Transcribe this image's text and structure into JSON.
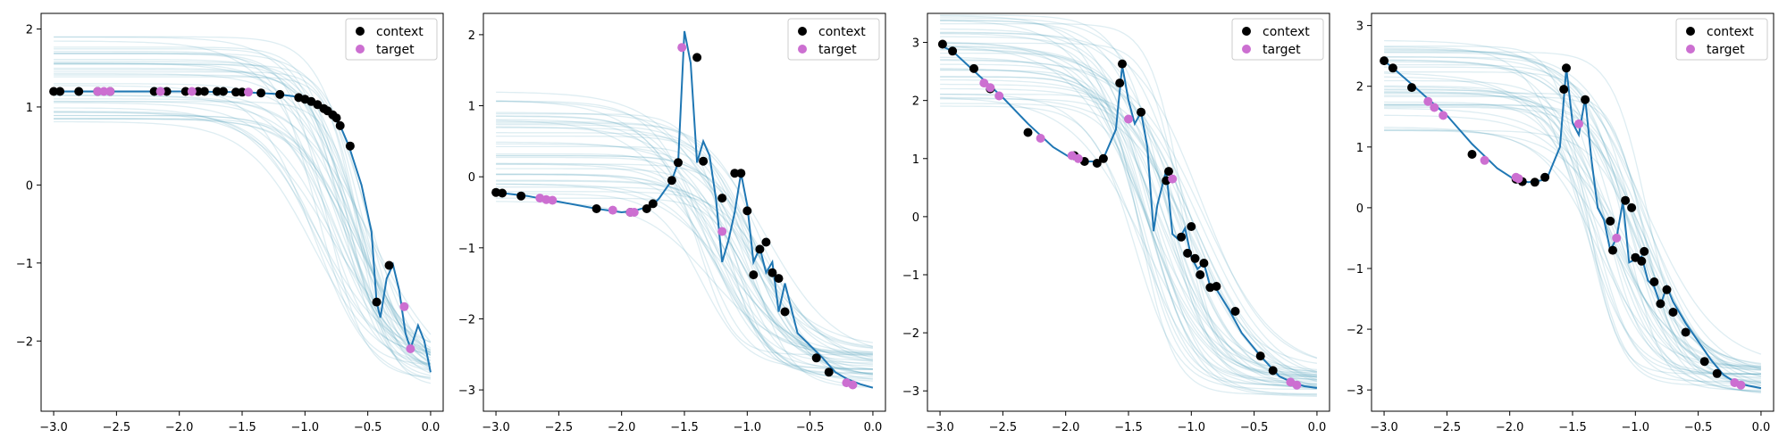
{
  "figure": {
    "colors": {
      "truth": "#1f77b4",
      "samples": "#4a9bb5",
      "band": "#9ed8df",
      "context": "#000000",
      "target": "#cc6fd1"
    },
    "legend": {
      "context_label": "context",
      "target_label": "target",
      "placement": "top-right"
    }
  },
  "chart_data": [
    {
      "type": "line",
      "xlim": [
        -3.1,
        0.1
      ],
      "ylim": [
        -2.9,
        2.2
      ],
      "xticks": [
        -3.0,
        -2.5,
        -2.0,
        -1.5,
        -1.0,
        -0.5,
        0.0
      ],
      "xtick_labels": [
        "−3.0",
        "−2.5",
        "−2.0",
        "−1.5",
        "−1.0",
        "−0.5",
        "0.0"
      ],
      "yticks": [
        -2,
        -1,
        0,
        1,
        2
      ],
      "ytick_labels": [
        "−2",
        "−1",
        "0",
        "1",
        "2"
      ],
      "truth_curve": {
        "x": [
          -3.0,
          -2.5,
          -2.0,
          -1.5,
          -1.25,
          -1.1,
          -1.0,
          -0.9,
          -0.8,
          -0.72,
          -0.65,
          -0.55,
          -0.47,
          -0.43,
          -0.4,
          -0.35,
          -0.3,
          -0.25,
          -0.2,
          -0.16,
          -0.1,
          -0.05,
          0.0
        ],
        "y": [
          1.2,
          1.2,
          1.2,
          1.19,
          1.17,
          1.14,
          1.1,
          1.03,
          0.92,
          0.76,
          0.5,
          0.0,
          -0.6,
          -1.5,
          -1.7,
          -1.2,
          -1.02,
          -1.35,
          -1.9,
          -2.1,
          -1.8,
          -2.0,
          -2.4
        ]
      },
      "context": {
        "x": [
          -3.0,
          -2.95,
          -2.8,
          -2.65,
          -2.55,
          -2.2,
          -2.1,
          -1.95,
          -1.85,
          -1.8,
          -1.7,
          -1.65,
          -1.55,
          -1.5,
          -1.35,
          -1.2,
          -1.05,
          -1.0,
          -0.95,
          -0.9,
          -0.85,
          -0.82,
          -0.78,
          -0.75,
          -0.72,
          -0.64,
          -0.43,
          -0.33
        ],
        "y": [
          1.2,
          1.2,
          1.2,
          1.2,
          1.2,
          1.2,
          1.2,
          1.2,
          1.2,
          1.2,
          1.2,
          1.2,
          1.19,
          1.19,
          1.18,
          1.16,
          1.12,
          1.1,
          1.07,
          1.03,
          0.98,
          0.95,
          0.9,
          0.86,
          0.76,
          0.5,
          -1.5,
          -1.03
        ]
      },
      "target": {
        "x": [
          -2.65,
          -2.6,
          -2.55,
          -2.15,
          -1.9,
          -1.45,
          -0.21,
          -0.16
        ],
        "y": [
          1.2,
          1.2,
          1.2,
          1.2,
          1.2,
          1.19,
          -1.56,
          -2.1
        ]
      },
      "samples": {
        "n": 40,
        "start_range": [
          0.78,
          1.9
        ],
        "end_range": [
          -2.6,
          -2.2
        ],
        "knee_range": [
          -0.95,
          -0.45
        ]
      }
    },
    {
      "type": "line",
      "xlim": [
        -3.1,
        0.1
      ],
      "ylim": [
        -3.3,
        2.3
      ],
      "xticks": [
        -3.0,
        -2.5,
        -2.0,
        -1.5,
        -1.0,
        -0.5,
        0.0
      ],
      "xtick_labels": [
        "−3.0",
        "−2.5",
        "−2.0",
        "−1.5",
        "−1.0",
        "−0.5",
        "0.0"
      ],
      "yticks": [
        -3,
        -2,
        -1,
        0,
        1,
        2
      ],
      "ytick_labels": [
        "−3",
        "−2",
        "−1",
        "0",
        "1",
        "2"
      ],
      "truth_curve": {
        "x": [
          -3.0,
          -2.9,
          -2.75,
          -2.6,
          -2.5,
          -2.2,
          -2.0,
          -1.9,
          -1.75,
          -1.7,
          -1.6,
          -1.55,
          -1.5,
          -1.45,
          -1.4,
          -1.35,
          -1.3,
          -1.25,
          -1.2,
          -1.15,
          -1.1,
          -1.05,
          -1.0,
          -0.95,
          -0.9,
          -0.85,
          -0.8,
          -0.75,
          -0.7,
          -0.6,
          -0.4,
          -0.3,
          -0.2,
          -0.1,
          0.0
        ],
        "y": [
          -0.22,
          -0.24,
          -0.27,
          -0.32,
          -0.35,
          -0.45,
          -0.5,
          -0.48,
          -0.4,
          -0.3,
          -0.05,
          0.2,
          2.05,
          1.6,
          0.2,
          0.5,
          0.3,
          -0.3,
          -1.2,
          -0.9,
          -0.5,
          0.05,
          -0.4,
          -1.2,
          -1.0,
          -1.35,
          -1.2,
          -1.9,
          -1.5,
          -2.2,
          -2.55,
          -2.75,
          -2.85,
          -2.92,
          -2.97
        ]
      },
      "context": {
        "x": [
          -3.0,
          -2.95,
          -2.8,
          -2.2,
          -1.93,
          -1.8,
          -1.75,
          -1.6,
          -1.55,
          -1.4,
          -1.35,
          -1.2,
          -1.1,
          -1.05,
          -1.0,
          -0.95,
          -0.9,
          -0.85,
          -0.8,
          -0.75,
          -0.7,
          -0.45,
          -0.35
        ],
        "y": [
          -0.22,
          -0.23,
          -0.27,
          -0.45,
          -0.5,
          -0.45,
          -0.38,
          -0.05,
          0.2,
          1.68,
          0.22,
          -0.3,
          0.05,
          0.05,
          -0.48,
          -1.38,
          -1.02,
          -0.92,
          -1.35,
          -1.43,
          -1.9,
          -2.55,
          -2.75
        ]
      },
      "target": {
        "x": [
          -2.65,
          -2.6,
          -2.55,
          -2.07,
          -1.93,
          -1.9,
          -1.52,
          -1.2,
          -0.21,
          -0.16
        ],
        "y": [
          -0.3,
          -0.32,
          -0.33,
          -0.47,
          -0.5,
          -0.5,
          1.82,
          -0.77,
          -2.9,
          -2.93
        ]
      },
      "samples": {
        "n": 40,
        "start_range": [
          -0.4,
          1.2
        ],
        "end_range": [
          -3.0,
          -2.4
        ],
        "knee_range": [
          -1.4,
          -0.8
        ]
      }
    },
    {
      "type": "line",
      "xlim": [
        -3.1,
        0.1
      ],
      "ylim": [
        -3.35,
        3.5
      ],
      "xticks": [
        -3.0,
        -2.5,
        -2.0,
        -1.5,
        -1.0,
        -0.5,
        0.0
      ],
      "xtick_labels": [
        "−3.0",
        "−2.5",
        "−2.0",
        "−1.5",
        "−1.0",
        "−0.5",
        "0.0"
      ],
      "yticks": [
        -3,
        -2,
        -1,
        0,
        1,
        2,
        3
      ],
      "ytick_labels": [
        "−3",
        "−2",
        "−1",
        "0",
        "1",
        "2",
        "3"
      ],
      "truth_curve": {
        "x": [
          -3.0,
          -2.9,
          -2.75,
          -2.6,
          -2.5,
          -2.3,
          -2.1,
          -1.95,
          -1.85,
          -1.75,
          -1.7,
          -1.6,
          -1.55,
          -1.5,
          -1.45,
          -1.4,
          -1.35,
          -1.3,
          -1.27,
          -1.2,
          -1.15,
          -1.1,
          -1.05,
          -1.0,
          -0.95,
          -0.9,
          -0.85,
          -0.8,
          -0.7,
          -0.6,
          -0.45,
          -0.3,
          -0.2,
          -0.1,
          0.0
        ],
        "y": [
          2.95,
          2.85,
          2.55,
          2.25,
          2.05,
          1.6,
          1.2,
          1.0,
          0.95,
          0.95,
          1.0,
          1.5,
          2.6,
          2.0,
          1.6,
          1.8,
          1.2,
          -0.25,
          0.2,
          0.8,
          -0.3,
          -0.4,
          -0.2,
          -0.7,
          -0.9,
          -0.8,
          -1.2,
          -1.25,
          -1.6,
          -2.0,
          -2.4,
          -2.75,
          -2.85,
          -2.92,
          -2.95
        ]
      },
      "context": {
        "x": [
          -2.98,
          -2.9,
          -2.73,
          -2.6,
          -2.3,
          -1.93,
          -1.85,
          -1.75,
          -1.7,
          -1.57,
          -1.55,
          -1.4,
          -1.2,
          -1.18,
          -1.08,
          -1.03,
          -1.0,
          -0.97,
          -0.93,
          -0.9,
          -0.85,
          -0.8,
          -0.65,
          -0.45,
          -0.35
        ],
        "y": [
          2.97,
          2.85,
          2.55,
          2.2,
          1.45,
          1.05,
          0.95,
          0.92,
          1.0,
          2.3,
          2.63,
          1.8,
          0.62,
          0.78,
          -0.35,
          -0.63,
          -0.17,
          -0.72,
          -1.0,
          -0.8,
          -1.22,
          -1.2,
          -1.63,
          -2.4,
          -2.65
        ]
      },
      "target": {
        "x": [
          -2.65,
          -2.6,
          -2.53,
          -2.2,
          -1.95,
          -1.9,
          -1.5,
          -1.15,
          -0.21,
          -0.16
        ],
        "y": [
          2.3,
          2.22,
          2.08,
          1.35,
          1.05,
          1.0,
          1.68,
          0.65,
          -2.85,
          -2.9
        ]
      },
      "samples": {
        "n": 40,
        "start_range": [
          1.9,
          3.5
        ],
        "end_range": [
          -3.1,
          -2.6
        ],
        "knee_range": [
          -1.45,
          -0.9
        ]
      }
    },
    {
      "type": "line",
      "xlim": [
        -3.1,
        0.1
      ],
      "ylim": [
        -3.35,
        3.2
      ],
      "xticks": [
        -3.0,
        -2.5,
        -2.0,
        -1.5,
        -1.0,
        -0.5,
        0.0
      ],
      "xtick_labels": [
        "−3.0",
        "−2.5",
        "−2.0",
        "−1.5",
        "−1.0",
        "−0.5",
        "0.0"
      ],
      "yticks": [
        -3,
        -2,
        -1,
        0,
        1,
        2,
        3
      ],
      "ytick_labels": [
        "−3",
        "−2",
        "−1",
        "0",
        "1",
        "2",
        "3"
      ],
      "truth_curve": {
        "x": [
          -3.0,
          -2.9,
          -2.75,
          -2.6,
          -2.5,
          -2.3,
          -2.1,
          -1.95,
          -1.85,
          -1.75,
          -1.7,
          -1.6,
          -1.55,
          -1.5,
          -1.45,
          -1.4,
          -1.35,
          -1.3,
          -1.25,
          -1.2,
          -1.15,
          -1.1,
          -1.05,
          -1.0,
          -0.95,
          -0.9,
          -0.85,
          -0.8,
          -0.75,
          -0.7,
          -0.6,
          -0.4,
          -0.3,
          -0.2,
          -0.1,
          0.0
        ],
        "y": [
          2.42,
          2.25,
          1.98,
          1.7,
          1.52,
          1.05,
          0.65,
          0.45,
          0.42,
          0.45,
          0.5,
          1.0,
          2.3,
          1.4,
          1.2,
          1.8,
          0.8,
          0.0,
          -0.2,
          -0.7,
          -0.5,
          0.1,
          -0.9,
          -0.85,
          -0.8,
          -1.2,
          -1.3,
          -1.6,
          -1.3,
          -1.55,
          -1.9,
          -2.5,
          -2.75,
          -2.88,
          -2.93,
          -2.97
        ]
      },
      "context": {
        "x": [
          -3.0,
          -2.93,
          -2.78,
          -2.3,
          -1.95,
          -1.9,
          -1.8,
          -1.72,
          -1.57,
          -1.55,
          -1.4,
          -1.2,
          -1.18,
          -1.08,
          -1.03,
          -1.0,
          -0.95,
          -0.93,
          -0.85,
          -0.8,
          -0.75,
          -0.7,
          -0.6,
          -0.45,
          -0.35
        ],
        "y": [
          2.42,
          2.3,
          1.98,
          0.88,
          0.47,
          0.43,
          0.42,
          0.5,
          1.95,
          2.3,
          1.78,
          -0.22,
          -0.7,
          0.12,
          0.0,
          -0.82,
          -0.88,
          -0.72,
          -1.22,
          -1.58,
          -1.35,
          -1.72,
          -2.05,
          -2.53,
          -2.73
        ]
      },
      "target": {
        "x": [
          -2.65,
          -2.6,
          -2.53,
          -2.2,
          -1.95,
          -1.93,
          -1.45,
          -1.15,
          -0.21,
          -0.16
        ],
        "y": [
          1.75,
          1.65,
          1.52,
          0.78,
          0.5,
          0.48,
          1.38,
          -0.5,
          -2.88,
          -2.92
        ]
      },
      "samples": {
        "n": 40,
        "start_range": [
          1.2,
          2.85
        ],
        "end_range": [
          -3.1,
          -2.6
        ],
        "knee_range": [
          -1.45,
          -0.9
        ]
      }
    }
  ]
}
